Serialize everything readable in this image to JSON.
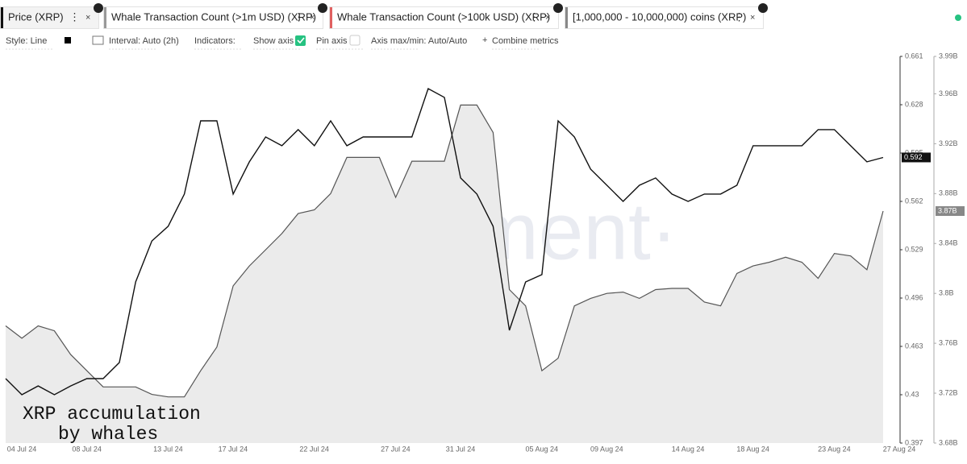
{
  "toolbar": {
    "tabs": [
      "Whale Transaction Count (>1m USD) (XRP)",
      "Whale Transaction Count (>100k USD) (XRP)"
    ],
    "controls": [
      "Style: Line",
      "Interval: Auto (2h)",
      "Indicators:",
      "Show axis",
      "Pin axis",
      "Axis max/min: Auto/Auto",
      "Combine metrics"
    ]
  },
  "chart_data": {
    "type": "line",
    "watermark": "·santiment·",
    "annotation": [
      "XRP accumulation",
      "by whales"
    ],
    "categories": [
      "04 Jul 24",
      null,
      null,
      null,
      "08 Jul 24",
      null,
      null,
      null,
      null,
      "13 Jul 24",
      null,
      null,
      null,
      "17 Jul 24",
      null,
      null,
      null,
      null,
      "22 Jul 24",
      null,
      null,
      null,
      null,
      "27 Jul 24",
      null,
      null,
      null,
      "31 Jul 24",
      null,
      null,
      null,
      null,
      "05 Aug 24",
      null,
      null,
      null,
      "09 Aug 24",
      null,
      null,
      null,
      null,
      "14 Aug 24",
      null,
      null,
      null,
      "18 Aug 24",
      null,
      null,
      null,
      null,
      "23 Aug 24",
      null,
      null,
      null,
      "27 Aug 24"
    ],
    "series": [
      {
        "name": "Price (XRP)",
        "color": "#111111",
        "axis": "y",
        "last_label": "0.592",
        "values": [
          0.441,
          0.43,
          0.436,
          0.43,
          0.436,
          0.441,
          0.441,
          0.452,
          0.507,
          0.535,
          0.545,
          0.567,
          0.617,
          0.617,
          0.567,
          0.589,
          0.606,
          0.6,
          0.611,
          0.6,
          0.617,
          0.6,
          0.606,
          0.606,
          0.606,
          0.606,
          0.639,
          0.633,
          0.578,
          0.567,
          0.545,
          0.474,
          0.507,
          0.512,
          0.617,
          0.606,
          0.584,
          0.573,
          0.562,
          0.573,
          0.578,
          0.567,
          0.562,
          0.567,
          0.567,
          0.573,
          0.6,
          0.6,
          0.6,
          0.6,
          0.611,
          0.611,
          0.6,
          0.589,
          0.592
        ]
      },
      {
        "name": "[1,000,000 - 10,000,000) coins (XRP)",
        "color": "#555555",
        "fill": "#ebebeb",
        "axis": "y2",
        "last_label": "3.87B",
        "values": [
          3.774,
          3.764,
          3.774,
          3.77,
          3.751,
          3.738,
          3.725,
          3.725,
          3.725,
          3.719,
          3.717,
          3.717,
          3.738,
          3.757,
          3.806,
          3.822,
          3.835,
          3.848,
          3.864,
          3.867,
          3.88,
          3.909,
          3.909,
          3.909,
          3.877,
          3.906,
          3.906,
          3.906,
          3.951,
          3.951,
          3.929,
          3.803,
          3.79,
          3.738,
          3.748,
          3.79,
          3.796,
          3.8,
          3.801,
          3.796,
          3.803,
          3.804,
          3.804,
          3.793,
          3.79,
          3.816,
          3.822,
          3.825,
          3.829,
          3.825,
          3.812,
          3.832,
          3.83,
          3.819,
          3.866
        ]
      }
    ],
    "ylim": [
      0.397,
      0.661
    ],
    "yticks": [
      0.397,
      0.43,
      0.463,
      0.496,
      0.529,
      0.562,
      0.595,
      0.628,
      0.661
    ],
    "y2lim": [
      3.68,
      3.99
    ],
    "y2ticks": [
      {
        "value": 3.68,
        "label": "3.68B"
      },
      {
        "value": 3.72,
        "label": "3.72B"
      },
      {
        "value": 3.76,
        "label": "3.76B"
      },
      {
        "value": 3.8,
        "label": "3.8B"
      },
      {
        "value": 3.84,
        "label": "3.84B"
      },
      {
        "value": 3.88,
        "label": "3.88B"
      },
      {
        "value": 3.92,
        "label": "3.92B"
      },
      {
        "value": 3.96,
        "label": "3.96B"
      },
      {
        "value": 3.99,
        "label": "3.99B"
      }
    ]
  }
}
